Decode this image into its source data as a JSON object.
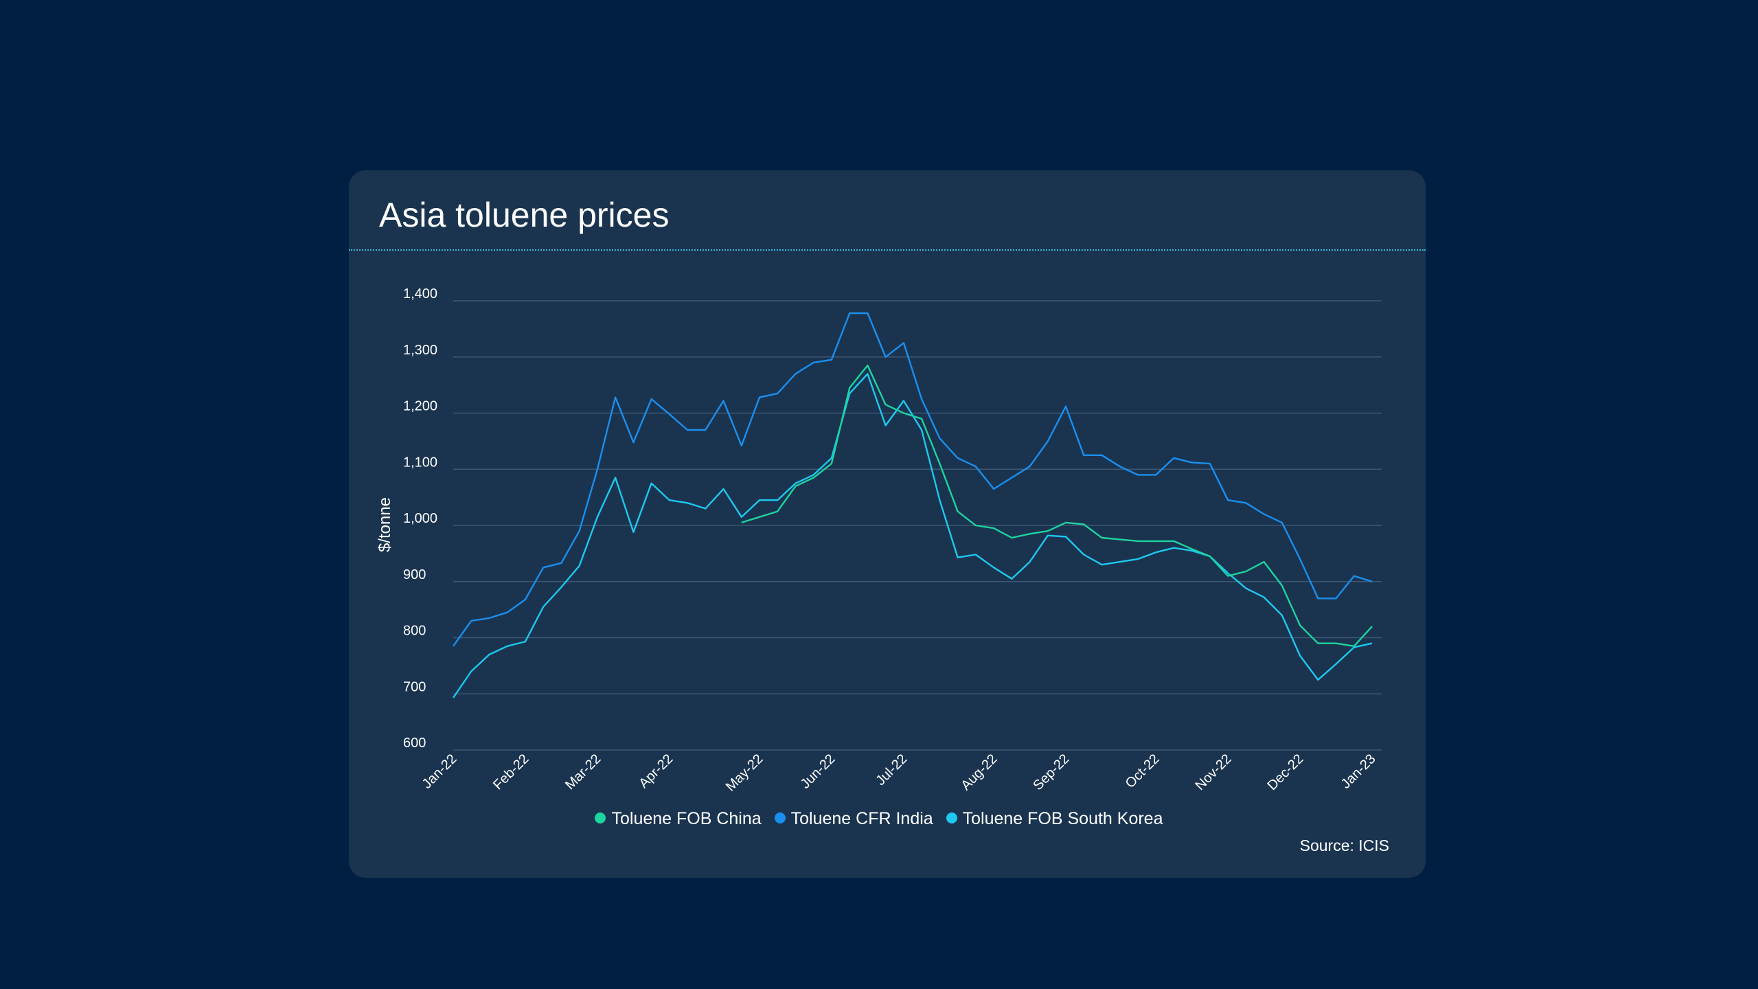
{
  "chart_data": {
    "type": "line",
    "title": "Asia toluene prices",
    "ylabel": "$/tonne",
    "xlabel": "",
    "ylim": [
      600,
      1400
    ],
    "yticks": [
      600,
      700,
      800,
      900,
      1000,
      1100,
      1200,
      1300,
      1400
    ],
    "ytick_labels": [
      "600",
      "700",
      "800",
      "900",
      "1,000",
      "1,100",
      "1,200",
      "1,300",
      "1,400"
    ],
    "x_tick_labels": [
      "Jan-22",
      "Feb-22",
      "Mar-22",
      "Apr-22",
      "May-22",
      "Jun-22",
      "Jul-22",
      "Aug-22",
      "Sep-22",
      "Oct-22",
      "Nov-22",
      "Dec-22",
      "Jan-23"
    ],
    "x_tick_weeks": [
      0,
      4,
      8,
      12,
      17,
      21,
      25,
      30,
      34,
      39,
      43,
      47,
      51
    ],
    "grid": true,
    "legend_position": "bottom",
    "series": [
      {
        "name": "Toluene FOB China",
        "color": "#1dd3a0",
        "start_week": 16,
        "values": [
          1005,
          1015,
          1025,
          1070,
          1085,
          1110,
          1245,
          1285,
          1215,
          1200,
          1190,
          1110,
          1025,
          1000,
          995,
          978,
          985,
          990,
          1005,
          1002,
          978,
          975,
          972,
          972,
          972,
          958,
          945,
          910,
          918,
          935,
          893,
          822,
          790,
          790,
          785,
          820
        ]
      },
      {
        "name": "Toluene CFR India",
        "color": "#1a8fee",
        "start_week": 0,
        "values": [
          785,
          830,
          835,
          845,
          868,
          925,
          933,
          990,
          1100,
          1228,
          1148,
          1225,
          1198,
          1170,
          1170,
          1222,
          1142,
          1228,
          1235,
          1270,
          1290,
          1295,
          1378,
          1378,
          1300,
          1325,
          1225,
          1155,
          1120,
          1105,
          1065,
          1085,
          1105,
          1150,
          1212,
          1125,
          1125,
          1105,
          1090,
          1090,
          1120,
          1112,
          1110,
          1045,
          1040,
          1020,
          1005,
          940,
          870,
          870,
          910,
          900
        ]
      },
      {
        "name": "Toluene FOB South Korea",
        "color": "#1ec8ee",
        "start_week": 0,
        "values": [
          693,
          740,
          770,
          785,
          793,
          855,
          890,
          928,
          1015,
          1085,
          988,
          1075,
          1045,
          1040,
          1030,
          1065,
          1015,
          1045,
          1045,
          1075,
          1090,
          1120,
          1235,
          1270,
          1178,
          1222,
          1170,
          1045,
          943,
          948,
          925,
          905,
          935,
          982,
          980,
          948,
          930,
          935,
          940,
          952,
          960,
          955,
          945,
          915,
          888,
          872,
          840,
          768,
          725,
          753,
          783,
          790
        ]
      }
    ]
  },
  "source": "Source: ICIS"
}
